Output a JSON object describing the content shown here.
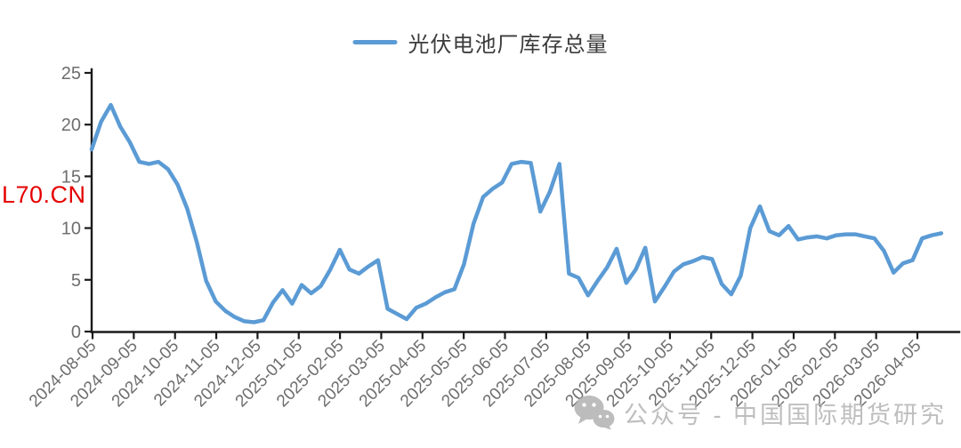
{
  "legend": {
    "label": "光伏电池厂库存总量"
  },
  "watermarks": {
    "red_text": "L70.CN",
    "gray_text": "公众号 - 中国国际期货研究"
  },
  "chart_data": {
    "type": "line",
    "title": "光伏电池厂库存总量",
    "series": [
      {
        "name": "光伏电池厂库存总量",
        "values": [
          17.6,
          20.3,
          21.9,
          19.8,
          18.3,
          16.4,
          16.2,
          16.4,
          15.7,
          14.2,
          11.9,
          8.7,
          4.9,
          2.9,
          2.0,
          1.4,
          1.0,
          0.9,
          1.1,
          2.8,
          4.0,
          2.7,
          4.5,
          3.7,
          4.4,
          6.0,
          7.9,
          6.0,
          5.6,
          6.3,
          6.9,
          2.2,
          1.7,
          1.2,
          2.3,
          2.7,
          3.3,
          3.8,
          4.1,
          6.5,
          10.4,
          13.0,
          13.8,
          14.4,
          16.2,
          16.4,
          16.3,
          11.6,
          13.5,
          16.2,
          5.6,
          5.2,
          3.5,
          4.9,
          6.2,
          8.0,
          4.7,
          6.0,
          8.1,
          2.9,
          4.3,
          5.8,
          6.5,
          6.8,
          7.2,
          7.0,
          4.6,
          3.6,
          5.4,
          10.0,
          12.1,
          9.7,
          9.3,
          10.2,
          8.9,
          9.1,
          9.2,
          9.0,
          9.3,
          9.4,
          9.4,
          9.2,
          9.0,
          7.8,
          5.7,
          6.6,
          6.9,
          9.0,
          9.3,
          9.5
        ]
      }
    ],
    "x": [
      "2024-08-05",
      "2024-08-12",
      "2024-08-19",
      "2024-08-26",
      "2024-09-02",
      "2024-09-09",
      "2024-09-16",
      "2024-09-23",
      "2024-09-30",
      "2024-10-07",
      "2024-10-14",
      "2024-10-21",
      "2024-10-28",
      "2024-11-04",
      "2024-11-11",
      "2024-11-18",
      "2024-11-25",
      "2024-12-02",
      "2024-12-09",
      "2024-12-16",
      "2024-12-23",
      "2024-12-30",
      "2025-01-06",
      "2025-01-13",
      "2025-01-20",
      "2025-01-27",
      "2025-02-03",
      "2025-02-10",
      "2025-02-17",
      "2025-02-24",
      "2025-03-03",
      "2025-03-10",
      "2025-03-17",
      "2025-03-24",
      "2025-03-31",
      "2025-04-07",
      "2025-04-14",
      "2025-04-21",
      "2025-04-28",
      "2025-05-05",
      "2025-05-12",
      "2025-05-19",
      "2025-05-26",
      "2025-06-02",
      "2025-06-09",
      "2025-06-16",
      "2025-06-23",
      "2025-06-30",
      "2025-07-07",
      "2025-07-14",
      "2025-07-21",
      "2025-07-28",
      "2025-08-04",
      "2025-08-11",
      "2025-08-18",
      "2025-08-25",
      "2025-09-01",
      "2025-09-08",
      "2025-09-15",
      "2025-09-22",
      "2025-09-29",
      "2025-10-06",
      "2025-10-13",
      "2025-10-20",
      "2025-10-27",
      "2025-11-03",
      "2025-11-10",
      "2025-11-17",
      "2025-11-24",
      "2025-12-01",
      "2025-12-08",
      "2025-12-15",
      "2025-12-22",
      "2025-12-29",
      "2026-01-05",
      "2026-01-12",
      "2026-01-19",
      "2026-01-26",
      "2026-02-02",
      "2026-02-09",
      "2026-02-16",
      "2026-02-23",
      "2026-03-02",
      "2026-03-09",
      "2026-03-16",
      "2026-03-23",
      "2026-03-30",
      "2026-04-06",
      "2026-04-13",
      "2026-04-20"
    ],
    "x_tick_labels": [
      "2024-08-05",
      "2024-09-05",
      "2024-10-05",
      "2024-11-05",
      "2024-12-05",
      "2025-01-05",
      "2025-02-05",
      "2025-03-05",
      "2025-04-05",
      "2025-05-05",
      "2025-06-05",
      "2025-07-05",
      "2025-08-05",
      "2025-09-05",
      "2025-10-05",
      "2025-11-05",
      "2025-12-05",
      "2026-01-05",
      "2026-02-05",
      "2026-03-05",
      "2026-04-05"
    ],
    "y_ticks": [
      0,
      5,
      10,
      15,
      20,
      25
    ],
    "ylim": [
      0,
      25
    ],
    "xlabel": "",
    "ylabel": "",
    "grid": false,
    "legend_position": "top-center",
    "line_color": "#5B9BD5",
    "axis_color": "#1a1a1a",
    "tick_label_color": "#6e6e6e"
  }
}
